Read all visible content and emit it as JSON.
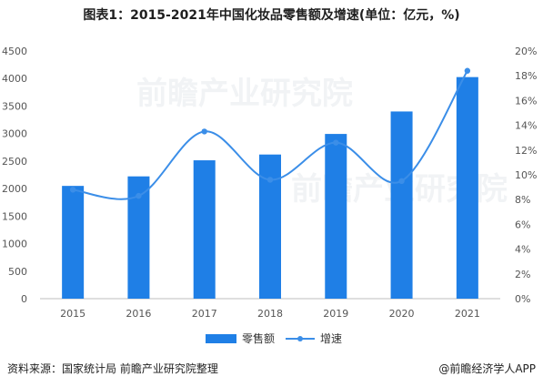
{
  "title": "图表1：2015-2021年中国化妆品零售额及增速(单位：亿元，%)",
  "source": "资料来源：国家统计局 前瞻产业研究院整理",
  "credit": "@前瞻经济学人APP",
  "watermark": "前瞻产业研究院",
  "colors": {
    "bar": "#1f7fe6",
    "line": "#3b8ee8",
    "axis": "#bfbfbf"
  },
  "chart_data": {
    "type": "bar",
    "categories": [
      "2015",
      "2016",
      "2017",
      "2018",
      "2019",
      "2020",
      "2021"
    ],
    "series": [
      {
        "name": "零售额",
        "type": "bar",
        "axis": "left",
        "values": [
          2049,
          2222,
          2514,
          2619,
          2993,
          3401,
          4026
        ]
      },
      {
        "name": "增速",
        "type": "line",
        "axis": "right",
        "smooth": true,
        "values": [
          8.8,
          8.3,
          13.5,
          9.6,
          12.6,
          9.5,
          18.4
        ]
      }
    ],
    "y_left": {
      "min": 0,
      "max": 4500,
      "step": 500
    },
    "y_right": {
      "min": 0,
      "max": 20,
      "step": 2,
      "unit": "%"
    },
    "legend_position": "bottom",
    "grid": false
  }
}
